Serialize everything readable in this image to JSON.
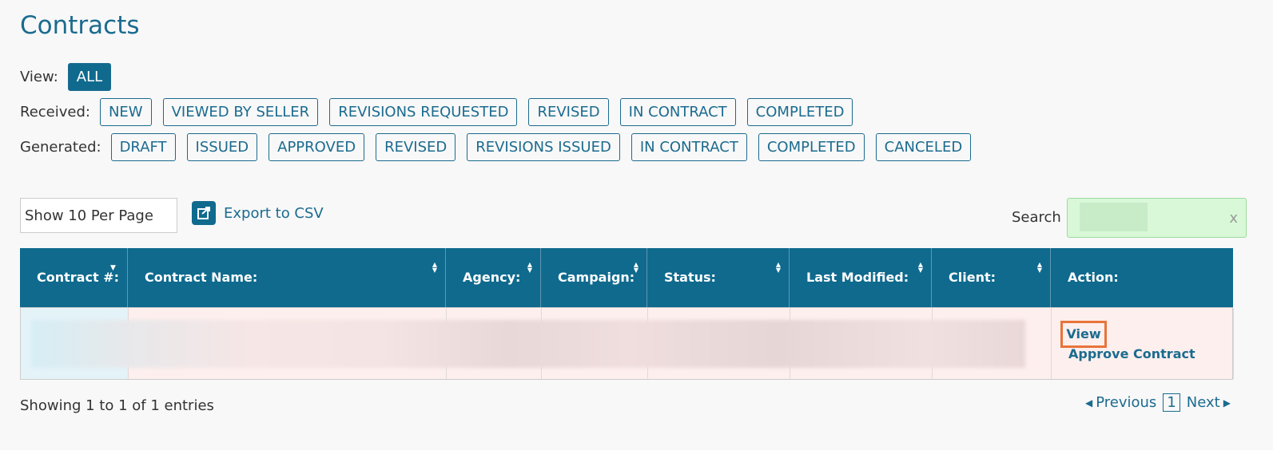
{
  "title": "Contracts",
  "filters": [
    {
      "label": "View:",
      "buttons": [
        "ALL"
      ]
    },
    {
      "label": "Received:",
      "buttons": [
        "NEW",
        "VIEWED BY SELLER",
        "REVISIONS REQUESTED",
        "REVISED",
        "IN CONTRACT",
        "COMPLETED"
      ]
    },
    {
      "label": "Generated:",
      "buttons": [
        "DRAFT",
        "ISSUED",
        "APPROVED",
        "REVISED",
        "REVISIONS ISSUED",
        "IN CONTRACT",
        "COMPLETED",
        "CANCELED"
      ]
    }
  ],
  "page_size": "Show 10 Per Page",
  "export": "Export to CSV",
  "search": {
    "label": "Search",
    "clear": "x"
  },
  "table": {
    "columns": [
      "Contract #:",
      "Contract Name:",
      "Agency:",
      "Campaign:",
      "Status:",
      "Last Modified:",
      "Client:",
      "Action:"
    ],
    "rows": [
      {
        "actions": [
          "View",
          "Approve Contract"
        ]
      }
    ]
  },
  "footer": {
    "info": "Showing 1 to 1 of 1 entries",
    "previous": "Previous",
    "page": "1",
    "next": "Next"
  }
}
